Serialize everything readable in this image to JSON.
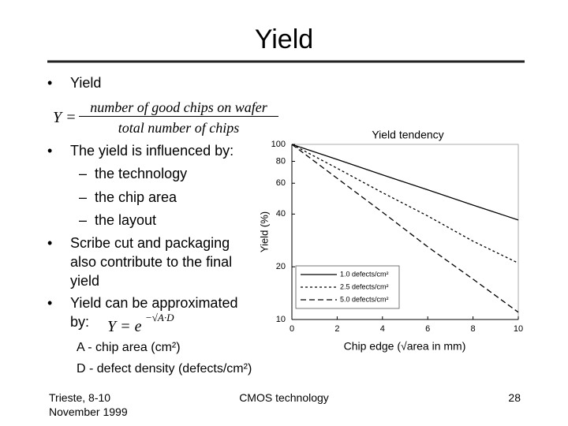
{
  "title": "Yield",
  "bullets": [
    "Yield",
    "The yield is influenced by:",
    "Scribe cut and packaging also contribute to the final yield",
    "Yield can be approximated by:"
  ],
  "sub_bullets": [
    "the technology",
    "the chip area",
    "the layout"
  ],
  "formula1": {
    "lhs": "Y =",
    "numerator": "number of good chips on wafer",
    "denominator": "total number of chips"
  },
  "formula2": {
    "base": "Y = e",
    "exponent": "−√A·D"
  },
  "definitions": [
    "A - chip area (cm²)",
    "D - defect density (defects/cm²)"
  ],
  "footer": {
    "left": [
      "Trieste, 8-10",
      "November 1999"
    ],
    "center": "CMOS technology",
    "page": "28"
  },
  "chart_data": {
    "type": "line",
    "title": "Yield tendency",
    "x_label": "Chip edge (√area in mm)",
    "y_label": "Yield (%)",
    "x": [
      0,
      2,
      4,
      6,
      8,
      10
    ],
    "series": [
      {
        "name": "1.0 defects/cm²",
        "color": "#000000",
        "line_style": "solid",
        "values": [
          100,
          82,
          67,
          55,
          45,
          37
        ]
      },
      {
        "name": "2.5 defects/cm²",
        "color": "#000000",
        "line_style": "dotted",
        "values": [
          100,
          73,
          53,
          39,
          28,
          21
        ]
      },
      {
        "name": "5.0 defects/cm²",
        "color": "#000000",
        "line_style": "dashed",
        "values": [
          100,
          64,
          41,
          26,
          17,
          11
        ]
      }
    ],
    "xlim": [
      0,
      10
    ],
    "xticks": [
      0,
      2,
      4,
      6,
      8,
      10
    ],
    "ylim": [
      10,
      100
    ],
    "yticks": [
      10,
      20,
      40,
      60,
      80,
      100
    ],
    "y_scale": "log",
    "legend": "lower left"
  }
}
